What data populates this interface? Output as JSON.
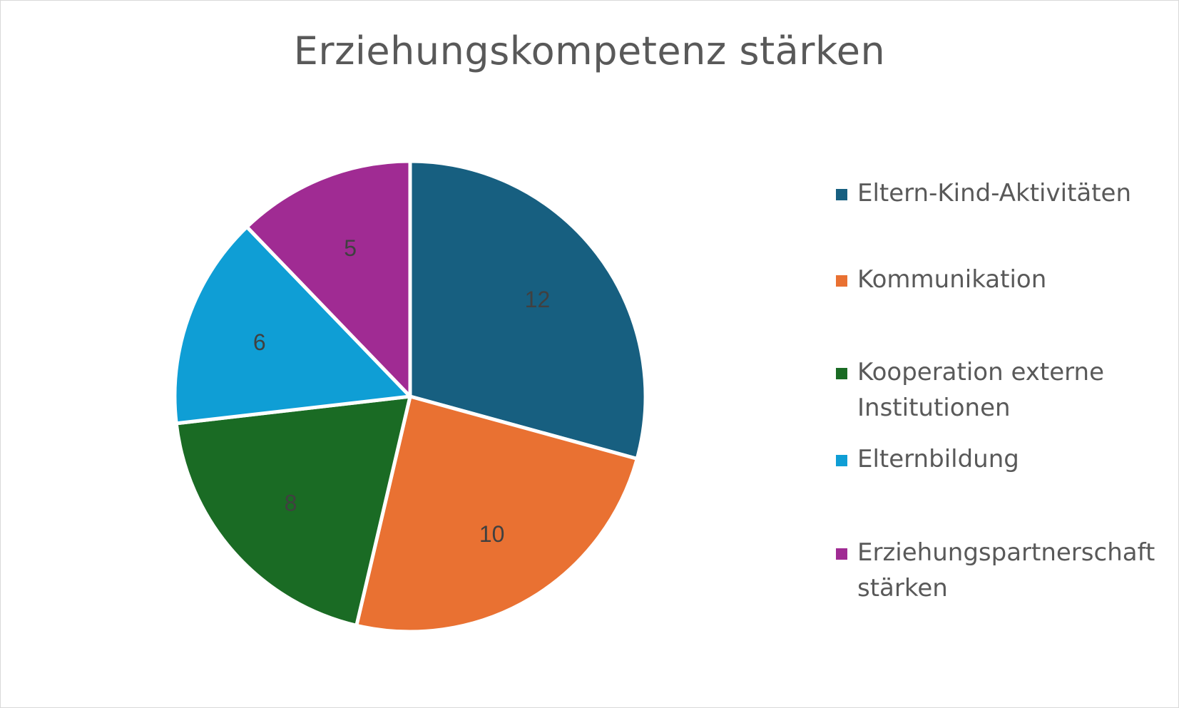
{
  "chart_data": {
    "type": "pie",
    "title": "Erziehungskompetenz stärken",
    "categories": [
      "Eltern-Kind-Aktivitäten",
      "Kommunikation",
      "Kooperation externe Institutionen",
      "Elternbildung",
      "Erziehungspartnerschaft stärken"
    ],
    "values": [
      12,
      10,
      8,
      6,
      5
    ],
    "colors": [
      "#175F80",
      "#E97132",
      "#1A6B24",
      "#0F9ED5",
      "#A02B93"
    ],
    "data_labels": [
      "12",
      "10",
      "8",
      "6",
      "5"
    ],
    "legend_position": "right"
  }
}
